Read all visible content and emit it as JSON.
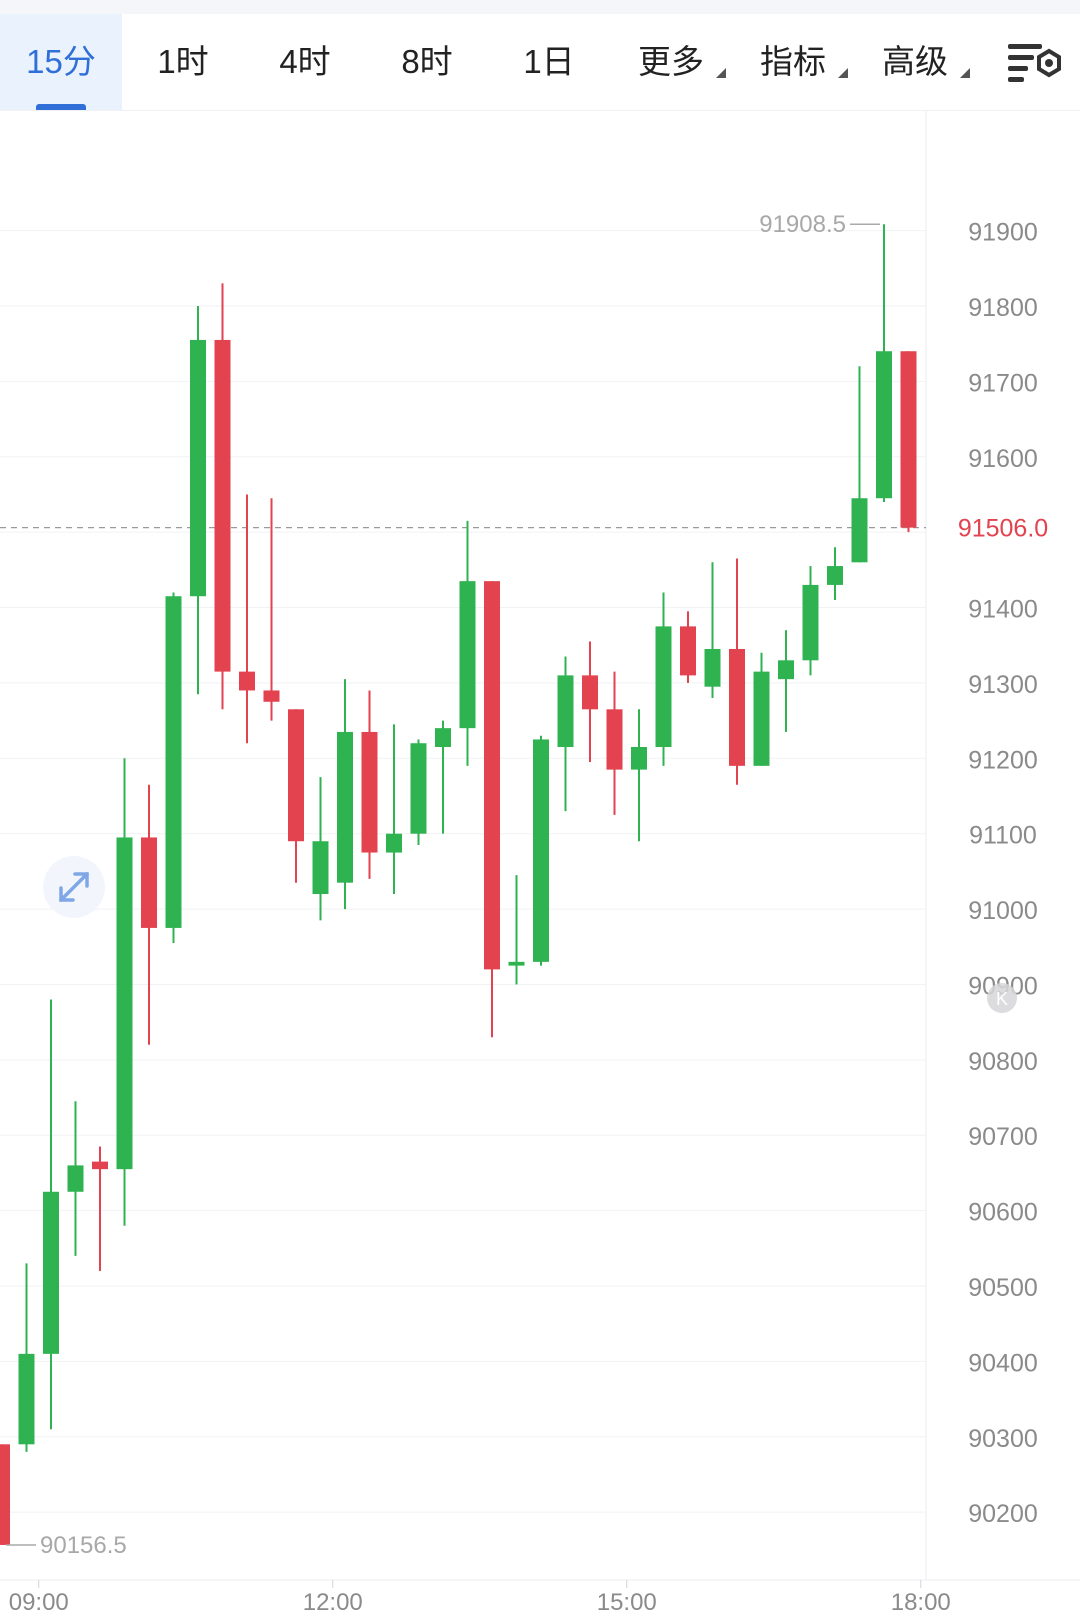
{
  "toolbar": {
    "tabs": [
      {
        "label": "15分",
        "active": true,
        "dropdown": false
      },
      {
        "label": "1时",
        "active": false,
        "dropdown": false
      },
      {
        "label": "4时",
        "active": false,
        "dropdown": false
      },
      {
        "label": "8时",
        "active": false,
        "dropdown": false
      },
      {
        "label": "1日",
        "active": false,
        "dropdown": false
      },
      {
        "label": "更多",
        "active": false,
        "dropdown": true
      },
      {
        "label": "指标",
        "active": false,
        "dropdown": true
      },
      {
        "label": "高级",
        "active": false,
        "dropdown": true
      }
    ],
    "settings_icon": "chart-settings-icon"
  },
  "colors": {
    "up": "#2fb350",
    "down": "#e2434f",
    "accent": "#2f6fd7",
    "price_label": "#e2434f"
  },
  "chart_data": {
    "type": "candlestick",
    "timeframe": "15分",
    "y_ticks": [
      91900,
      91800,
      91700,
      91600,
      91500,
      91400,
      91300,
      91200,
      91100,
      91000,
      90900,
      90800,
      90700,
      90600,
      90500,
      90400,
      90300,
      90200
    ],
    "y_tick_labels": [
      "91900",
      "91800",
      "91700",
      "91600",
      "91400",
      "91300",
      "91200",
      "91100",
      "91000",
      "90900",
      "90800",
      "90700",
      "90600",
      "90500",
      "90400",
      "90300",
      "90200"
    ],
    "ylim": [
      90110,
      92060
    ],
    "x_ticks": [
      {
        "index": 1.5,
        "label": "09:00"
      },
      {
        "index": 13.5,
        "label": "12:00"
      },
      {
        "index": 25.5,
        "label": "15:00"
      },
      {
        "index": 37.5,
        "label": "18:00"
      }
    ],
    "current_price": 91506.0,
    "current_price_label": "91506.0",
    "max_label": "91908.5",
    "min_label": "90156.5",
    "candles": [
      {
        "o": 90290,
        "h": 90290,
        "l": 90156.5,
        "c": 90156.5
      },
      {
        "o": 90290,
        "h": 90530,
        "l": 90280,
        "c": 90410
      },
      {
        "o": 90410,
        "h": 90880,
        "l": 90310,
        "c": 90625
      },
      {
        "o": 90625,
        "h": 90745,
        "l": 90540,
        "c": 90660
      },
      {
        "o": 90665,
        "h": 90685,
        "l": 90520,
        "c": 90655
      },
      {
        "o": 90655,
        "h": 91200,
        "l": 90580,
        "c": 91095
      },
      {
        "o": 91095,
        "h": 91165,
        "l": 90820,
        "c": 90975
      },
      {
        "o": 90975,
        "h": 91420,
        "l": 90955,
        "c": 91415
      },
      {
        "o": 91415,
        "h": 91800,
        "l": 91285,
        "c": 91755
      },
      {
        "o": 91755,
        "h": 91830,
        "l": 91265,
        "c": 91315
      },
      {
        "o": 91315,
        "h": 91550,
        "l": 91220,
        "c": 91290
      },
      {
        "o": 91290,
        "h": 91545,
        "l": 91250,
        "c": 91275
      },
      {
        "o": 91265,
        "h": 91265,
        "l": 91035,
        "c": 91090
      },
      {
        "o": 91020,
        "h": 91175,
        "l": 90985,
        "c": 91090
      },
      {
        "o": 91035,
        "h": 91305,
        "l": 91000,
        "c": 91235
      },
      {
        "o": 91235,
        "h": 91290,
        "l": 91040,
        "c": 91075
      },
      {
        "o": 91075,
        "h": 91245,
        "l": 91020,
        "c": 91100
      },
      {
        "o": 91100,
        "h": 91225,
        "l": 91085,
        "c": 91220
      },
      {
        "o": 91215,
        "h": 91250,
        "l": 91100,
        "c": 91240
      },
      {
        "o": 91240,
        "h": 91515,
        "l": 91190,
        "c": 91435
      },
      {
        "o": 91435,
        "h": 91435,
        "l": 90830,
        "c": 90920
      },
      {
        "o": 90925,
        "h": 91045,
        "l": 90900,
        "c": 90930
      },
      {
        "o": 90930,
        "h": 91230,
        "l": 90925,
        "c": 91225
      },
      {
        "o": 91215,
        "h": 91335,
        "l": 91130,
        "c": 91310
      },
      {
        "o": 91310,
        "h": 91355,
        "l": 91195,
        "c": 91265
      },
      {
        "o": 91265,
        "h": 91315,
        "l": 91125,
        "c": 91185
      },
      {
        "o": 91185,
        "h": 91265,
        "l": 91090,
        "c": 91215
      },
      {
        "o": 91215,
        "h": 91420,
        "l": 91190,
        "c": 91375
      },
      {
        "o": 91375,
        "h": 91395,
        "l": 91300,
        "c": 91310
      },
      {
        "o": 91295,
        "h": 91460,
        "l": 91280,
        "c": 91345
      },
      {
        "o": 91345,
        "h": 91465,
        "l": 91165,
        "c": 91190
      },
      {
        "o": 91190,
        "h": 91340,
        "l": 91190,
        "c": 91315
      },
      {
        "o": 91305,
        "h": 91370,
        "l": 91235,
        "c": 91330
      },
      {
        "o": 91330,
        "h": 91455,
        "l": 91310,
        "c": 91430
      },
      {
        "o": 91430,
        "h": 91480,
        "l": 91410,
        "c": 91455
      },
      {
        "o": 91460,
        "h": 91720,
        "l": 91460,
        "c": 91545
      },
      {
        "o": 91545,
        "h": 91908.5,
        "l": 91540,
        "c": 91740
      },
      {
        "o": 91740,
        "h": 91740,
        "l": 91500,
        "c": 91506
      }
    ]
  }
}
